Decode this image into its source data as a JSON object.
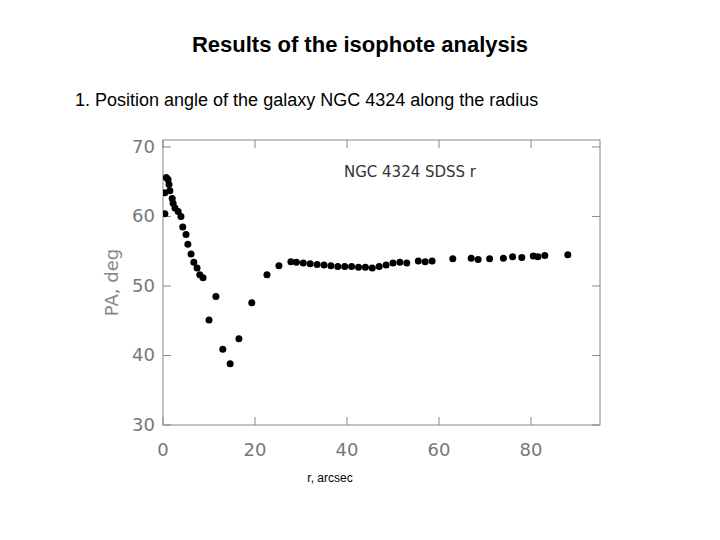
{
  "header": {
    "title": "Results of the isophote analysis",
    "subtitle": "1. Position angle of the galaxy NGC 4324 along the radius"
  },
  "chart_data": {
    "type": "scatter",
    "title": "NGC 4324 SDSS r",
    "x_label": "r, arcsec",
    "y_label": "PA, deg",
    "xlim": [
      0,
      95
    ],
    "ylim": [
      30,
      71
    ],
    "xticks": [
      0,
      20,
      40,
      60,
      80
    ],
    "yticks": [
      30,
      40,
      50,
      60,
      70
    ],
    "grid": false,
    "marker": "circle",
    "color": "#000000",
    "series": [
      {
        "name": "NGC 4324",
        "x": [
          0.4,
          0.4,
          0.7,
          1.1,
          1.3,
          1.5,
          2.0,
          2.2,
          2.6,
          3.3,
          3.9,
          4.3,
          5.0,
          5.4,
          6.1,
          6.7,
          7.4,
          8.0,
          8.7,
          10.0,
          11.5,
          13.0,
          14.6,
          16.5,
          19.3,
          22.6,
          25.2,
          27.8,
          29.0,
          30.5,
          32.0,
          33.5,
          35.0,
          36.5,
          38.0,
          39.5,
          41.0,
          42.5,
          44.0,
          45.5,
          47.0,
          48.5,
          50.0,
          51.5,
          53.0,
          55.5,
          57.0,
          58.5,
          63.0,
          67.0,
          68.5,
          71.0,
          74.0,
          76.0,
          78.0,
          80.5,
          81.5,
          83.0,
          88.0
        ],
        "values": [
          60.4,
          63.4,
          65.6,
          65.3,
          64.6,
          63.7,
          62.6,
          61.9,
          61.2,
          60.7,
          60.0,
          58.5,
          57.4,
          56.0,
          54.6,
          53.4,
          52.6,
          51.6,
          51.2,
          45.1,
          48.5,
          40.9,
          38.8,
          42.4,
          47.6,
          51.6,
          52.9,
          53.5,
          53.4,
          53.3,
          53.2,
          53.1,
          53.0,
          52.9,
          52.8,
          52.8,
          52.8,
          52.7,
          52.7,
          52.6,
          52.8,
          53.0,
          53.3,
          53.4,
          53.3,
          53.6,
          53.5,
          53.6,
          53.9,
          54.0,
          53.8,
          53.9,
          54.0,
          54.2,
          54.1,
          54.3,
          54.2,
          54.4,
          54.5
        ]
      }
    ]
  }
}
